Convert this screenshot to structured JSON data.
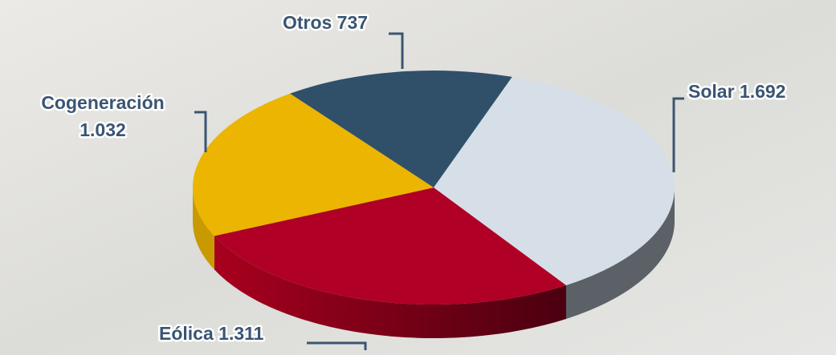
{
  "chart_data": {
    "type": "pie",
    "categories": [
      "Solar",
      "Eólica",
      "Cogeneración",
      "Otros"
    ],
    "values": [
      1692,
      1311,
      1032,
      737
    ],
    "value_labels": [
      "1.692",
      "1.311",
      "1.032",
      "737"
    ],
    "colors": [
      "#d6dfe7",
      "#b00026",
      "#ebb502",
      "#30506a"
    ]
  }
}
